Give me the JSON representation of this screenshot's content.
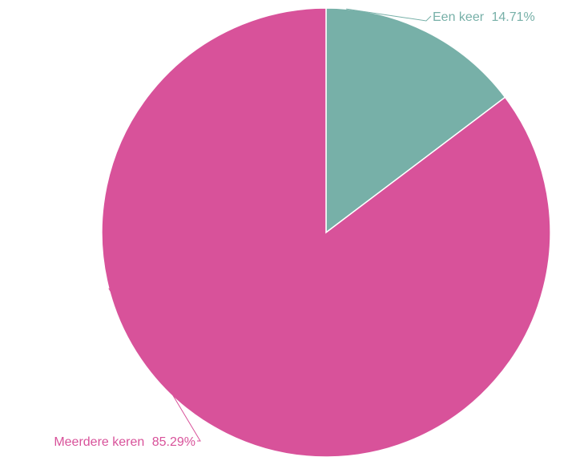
{
  "chart_data": {
    "type": "pie",
    "title": "",
    "slices": [
      {
        "label": "Een keer",
        "value": 14.71,
        "percent_label": "14.71%",
        "color": "#77b0a8"
      },
      {
        "label": "Meerdere keren",
        "value": 85.29,
        "percent_label": "85.29%",
        "color": "#d8529a"
      }
    ],
    "start_angle": "12 o'clock",
    "direction": "clockwise",
    "labels": "outside with leader lines",
    "legend": "none"
  }
}
